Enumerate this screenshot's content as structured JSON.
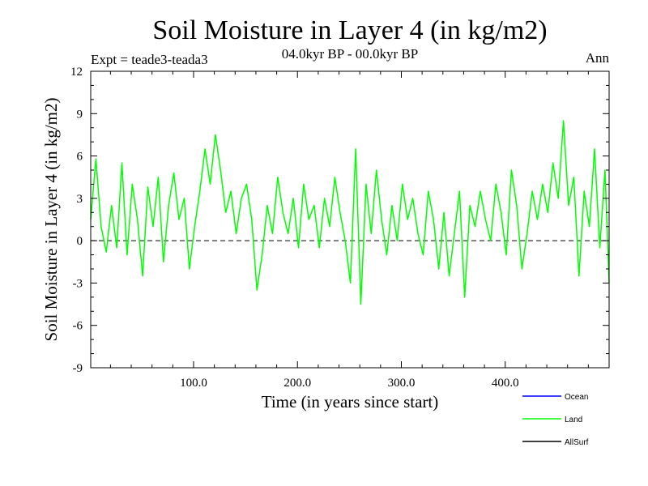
{
  "chart_data": {
    "type": "line",
    "title": "Soil Moisture in Layer 4 (in kg/m2)",
    "subtitle": "04.0kyr BP - 00.0kyr BP",
    "experiment": "Expt = teade3-teada3",
    "season": "Ann",
    "xlabel": "Time (in years since start)",
    "ylabel": "Soil Moisture in Layer 4 (in kg/m2)",
    "xlim": [
      1,
      500
    ],
    "ylim": [
      -9,
      12
    ],
    "x_ticks": [
      100,
      200,
      300,
      400
    ],
    "x_tick_labels": [
      "100.0",
      "200.0",
      "300.0",
      "400.0"
    ],
    "y_ticks": [
      -9,
      -6,
      -3,
      0,
      3,
      6,
      9,
      12
    ],
    "y_tick_labels": [
      "-9",
      "-6",
      "-3",
      "0",
      "3",
      "6",
      "9",
      "12"
    ],
    "zero_line": 0,
    "legend": [
      {
        "name": "Ocean",
        "color": "#0000ff"
      },
      {
        "name": "Land",
        "color": "#00ff00"
      },
      {
        "name": "AllSurf",
        "color": "#000000"
      }
    ],
    "series": [
      {
        "name": "Land",
        "color": "#00ff00",
        "x": [
          1,
          6,
          11,
          16,
          21,
          26,
          31,
          36,
          41,
          46,
          51,
          56,
          61,
          66,
          71,
          76,
          81,
          86,
          91,
          96,
          101,
          106,
          111,
          116,
          121,
          126,
          131,
          136,
          141,
          146,
          151,
          156,
          161,
          166,
          171,
          176,
          181,
          186,
          191,
          196,
          201,
          206,
          211,
          216,
          221,
          226,
          231,
          236,
          241,
          246,
          251,
          256,
          261,
          266,
          271,
          276,
          281,
          286,
          291,
          296,
          301,
          306,
          311,
          316,
          321,
          326,
          331,
          336,
          341,
          346,
          351,
          356,
          361,
          366,
          371,
          376,
          381,
          386,
          391,
          396,
          401,
          406,
          411,
          416,
          421,
          426,
          431,
          436,
          441,
          446,
          451,
          456,
          461,
          466,
          471,
          476,
          481,
          486,
          491,
          496,
          500
        ],
        "values": [
          1.5,
          5.8,
          1.0,
          -0.8,
          2.5,
          -0.5,
          5.5,
          -1.0,
          4.0,
          1.5,
          -2.5,
          3.8,
          1.0,
          4.5,
          -1.5,
          2.5,
          4.8,
          1.5,
          3.0,
          -2.0,
          1.0,
          3.5,
          6.5,
          4.0,
          7.5,
          5.0,
          2.0,
          3.5,
          0.5,
          3.0,
          4.0,
          1.5,
          -3.5,
          -1.0,
          2.5,
          0.5,
          4.5,
          2.0,
          0.5,
          3.0,
          -0.5,
          4.0,
          1.5,
          2.5,
          -0.5,
          3.0,
          1.0,
          4.5,
          2.0,
          0.0,
          -3.0,
          6.5,
          -4.5,
          4.0,
          0.5,
          5.0,
          1.5,
          -1.0,
          2.5,
          0.0,
          4.0,
          1.5,
          3.0,
          0.5,
          -1.0,
          3.5,
          1.5,
          -2.0,
          2.0,
          -2.5,
          0.5,
          3.5,
          -4.0,
          2.5,
          1.0,
          3.5,
          1.5,
          0.0,
          4.0,
          2.0,
          -1.0,
          5.0,
          2.5,
          -2.0,
          0.5,
          3.5,
          1.5,
          4.0,
          2.0,
          5.5,
          3.0,
          8.5,
          2.5,
          4.5,
          -2.5,
          3.5,
          1.0,
          6.5,
          -0.5,
          5.0,
          -3.0
        ]
      },
      {
        "name": "Ocean",
        "color": "#0000ff",
        "x": [],
        "values": []
      },
      {
        "name": "AllSurf",
        "color": "#000000",
        "x": [],
        "values": []
      }
    ]
  }
}
